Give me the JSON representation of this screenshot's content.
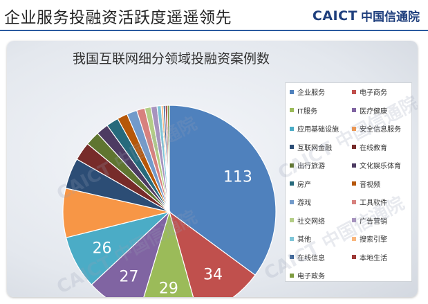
{
  "slide": {
    "title": "企业服务投融资活跃度遥遥领先",
    "logo_brand": "CAICT",
    "logo_cn": "中国信通院"
  },
  "watermark_text": "CAICT 中国信通院",
  "colors": {
    "title_rule": "#2a5aa0",
    "logo": "#1f3f7d"
  },
  "chart_data": {
    "type": "pie",
    "title": "我国互联网细分领域投融资案例数",
    "legend_position": "right",
    "slices": [
      {
        "label": "企业服务",
        "value": 113,
        "color": "#4f81bd",
        "show_label": true
      },
      {
        "label": "电子商务",
        "value": 34,
        "color": "#c0504d",
        "show_label": true
      },
      {
        "label": "IT服务",
        "value": 29,
        "color": "#9bbb59",
        "show_label": true
      },
      {
        "label": "医疗健康",
        "value": 27,
        "color": "#8064a2",
        "show_label": true
      },
      {
        "label": "应用基础设施",
        "value": 26,
        "color": "#4bacc6",
        "show_label": true
      },
      {
        "label": "安全信息服务",
        "value": 24,
        "color": "#f79646",
        "show_label": false
      },
      {
        "label": "互联网金融",
        "value": 15,
        "color": "#2c4d75",
        "show_label": false
      },
      {
        "label": "在线教育",
        "value": 9,
        "color": "#772c2a",
        "show_label": false
      },
      {
        "label": "出行旅游",
        "value": 7,
        "color": "#5f7530",
        "show_label": false
      },
      {
        "label": "文化娱乐体育",
        "value": 6,
        "color": "#4d3b62",
        "show_label": false
      },
      {
        "label": "房产",
        "value": 6,
        "color": "#276a7c",
        "show_label": false
      },
      {
        "label": "音视频",
        "value": 5,
        "color": "#b65708",
        "show_label": false
      },
      {
        "label": "游戏",
        "value": 5,
        "color": "#729aca",
        "show_label": false
      },
      {
        "label": "工具软件",
        "value": 4,
        "color": "#d7817e",
        "show_label": false
      },
      {
        "label": "社交网络",
        "value": 3,
        "color": "#b3cd86",
        "show_label": false
      },
      {
        "label": "广告营销",
        "value": 3,
        "color": "#a793be",
        "show_label": false
      },
      {
        "label": "其他",
        "value": 2,
        "color": "#7fc6d8",
        "show_label": false
      },
      {
        "label": "搜索引擎",
        "value": 1,
        "color": "#f9b77e",
        "show_label": false
      },
      {
        "label": "在线信息",
        "value": 1,
        "color": "#3a6498",
        "show_label": false
      },
      {
        "label": "本地生活",
        "value": 1,
        "color": "#9e3a37",
        "show_label": false
      },
      {
        "label": "电子政务",
        "value": 1,
        "color": "#7f9c41",
        "show_label": false
      }
    ]
  }
}
